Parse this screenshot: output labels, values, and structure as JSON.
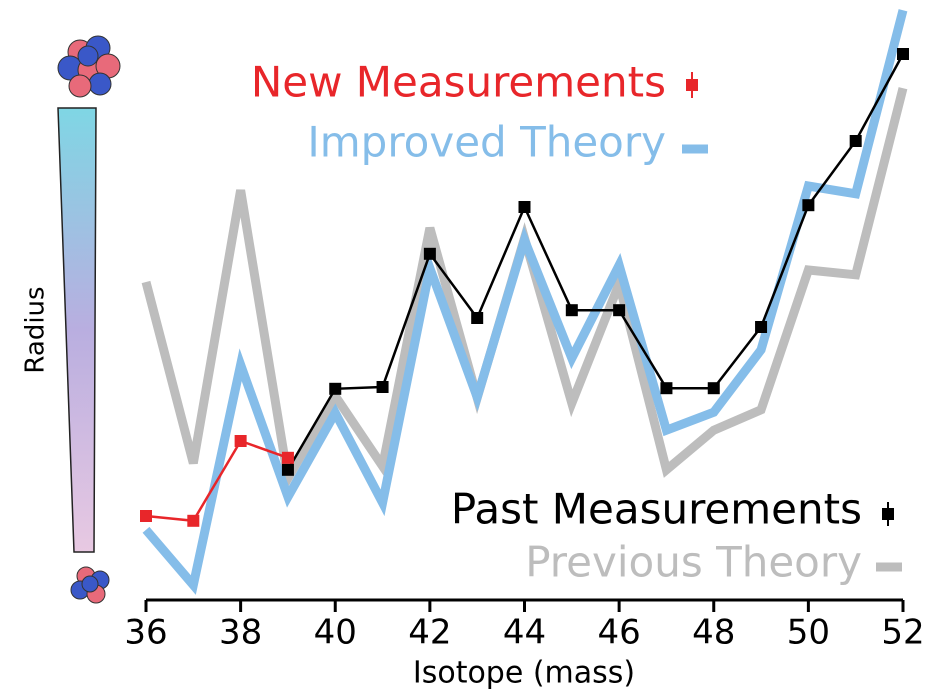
{
  "chart_data": {
    "type": "line",
    "x_label": "Isotope (mass)",
    "y_label": "Radius",
    "x": [
      36,
      37,
      38,
      39,
      40,
      41,
      42,
      43,
      44,
      45,
      46,
      47,
      48,
      49,
      50,
      51,
      52
    ],
    "xlim": [
      36,
      52
    ],
    "xticks": [
      36,
      38,
      40,
      42,
      44,
      46,
      48,
      50,
      52
    ],
    "ylim": [
      0,
      100
    ],
    "series": [
      {
        "name": "Previous Theory",
        "color": "#bdbdbd",
        "values": [
          53,
          22.8,
          68.3,
          20.3,
          34,
          22.3,
          62,
          33.7,
          60.3,
          32.8,
          52.7,
          21.7,
          28.3,
          31.7,
          55,
          54.2,
          85.3
        ]
      },
      {
        "name": "Improved Theory",
        "color": "#85bde9",
        "values": [
          11.7,
          2.5,
          39.2,
          17.2,
          31.2,
          16.2,
          55.3,
          33.8,
          60,
          40.3,
          55.8,
          28.3,
          31.3,
          41.7,
          69,
          67.7,
          98.3
        ]
      },
      {
        "name": "Past Measurements",
        "color": "#000000",
        "values": [
          null,
          null,
          null,
          21.7,
          35.2,
          35.5,
          57.7,
          47,
          65.5,
          48.3,
          48.3,
          35.3,
          35.3,
          45.5,
          65.8,
          76.5,
          91
        ]
      },
      {
        "name": "New Measurements",
        "color": "#e8262a",
        "values": [
          14,
          13.2,
          26.5,
          23.7,
          null,
          null,
          null,
          null,
          null,
          null,
          null,
          null,
          null,
          null,
          null,
          null,
          null
        ]
      }
    ]
  }
}
